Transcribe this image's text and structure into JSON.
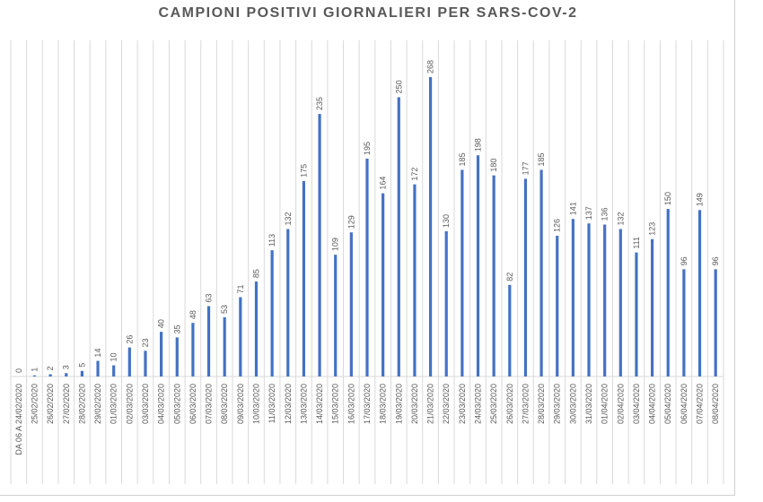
{
  "chart_data": {
    "type": "bar",
    "title": "CAMPIONI POSITIVI GIORNALIERI PER SARS-COV-2",
    "xlabel": "",
    "ylabel": "",
    "ylim": [
      0,
      268
    ],
    "grid": "vertical",
    "legend": "none",
    "bar_color": "#4472c4",
    "grid_color": "#d9d9d9",
    "label_color": "#595959",
    "categories": [
      "DA 06 A 24/02/2020",
      "25/02/2020",
      "26/02/2020",
      "27/02/2020",
      "28/02/2020",
      "29/02/2020",
      "01/03/2020",
      "02/03/2020",
      "03/03/2020",
      "04/03/2020",
      "05/03/2020",
      "06/03/2020",
      "07/03/2020",
      "08/03/2020",
      "09/03/2020",
      "10/03/2020",
      "11/03/2020",
      "12/03/2020",
      "13/03/2020",
      "14/03/2020",
      "15/03/2020",
      "16/03/2020",
      "17/03/2020",
      "18/03/2020",
      "19/03/2020",
      "20/03/2020",
      "21/03/2020",
      "22/03/2020",
      "23/03/2020",
      "24/03/2020",
      "25/03/2020",
      "26/03/2020",
      "27/03/2020",
      "28/03/2020",
      "29/03/2020",
      "30/03/2020",
      "31/03/2020",
      "01/04/2020",
      "02/04/2020",
      "03/04/2020",
      "04/04/2020",
      "05/04/2020",
      "06/04/2020",
      "07/04/2020",
      "08/04/2020"
    ],
    "values": [
      0,
      1,
      2,
      3,
      5,
      14,
      10,
      26,
      23,
      40,
      35,
      48,
      63,
      53,
      71,
      85,
      113,
      132,
      175,
      235,
      109,
      129,
      195,
      164,
      250,
      172,
      268,
      130,
      185,
      198,
      180,
      82,
      177,
      185,
      126,
      141,
      137,
      136,
      132,
      111,
      123,
      150,
      96,
      149,
      96
    ]
  }
}
